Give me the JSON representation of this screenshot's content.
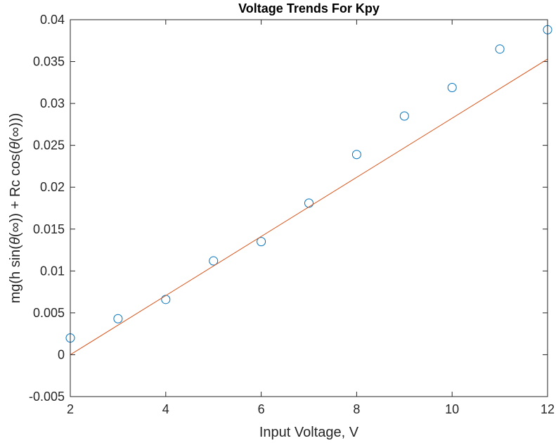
{
  "chart_data": {
    "type": "scatter",
    "title": "Voltage Trends For Kpy",
    "xlabel": "Input Voltage, V",
    "ylabel": "mg(h sin(θ(∞)) + Rc cos(θ(∞)))",
    "ylabel_parts": {
      "p1": "mg(h sin(",
      "theta1": "θ",
      "p2": "(∞)) + Rc cos(",
      "theta2": "θ",
      "p3": "(∞)))"
    },
    "xlim": [
      2,
      12
    ],
    "ylim": [
      -0.005,
      0.04
    ],
    "xticks": [
      2,
      4,
      6,
      8,
      10,
      12
    ],
    "yticks": [
      -0.005,
      0,
      0.005,
      0.01,
      0.015,
      0.02,
      0.025,
      0.03,
      0.035,
      0.04
    ],
    "xtick_labels": [
      "2",
      "4",
      "6",
      "8",
      "10",
      "12"
    ],
    "ytick_labels": [
      "-0.005",
      "0",
      "0.005",
      "0.01",
      "0.015",
      "0.02",
      "0.025",
      "0.03",
      "0.035",
      "0.04"
    ],
    "grid": false,
    "series": [
      {
        "marker": "circle",
        "color": "#0072BD",
        "x": [
          2,
          3,
          4,
          5,
          6,
          7,
          8,
          9,
          10,
          11,
          12
        ],
        "y": [
          0.002,
          0.0043,
          0.0066,
          0.0112,
          0.0135,
          0.0181,
          0.0239,
          0.0285,
          0.0319,
          0.0365,
          0.0388
        ]
      },
      {
        "line": true,
        "color": "#D95319",
        "x": [
          2,
          12
        ],
        "y": [
          0.0,
          0.0353
        ]
      }
    ]
  }
}
